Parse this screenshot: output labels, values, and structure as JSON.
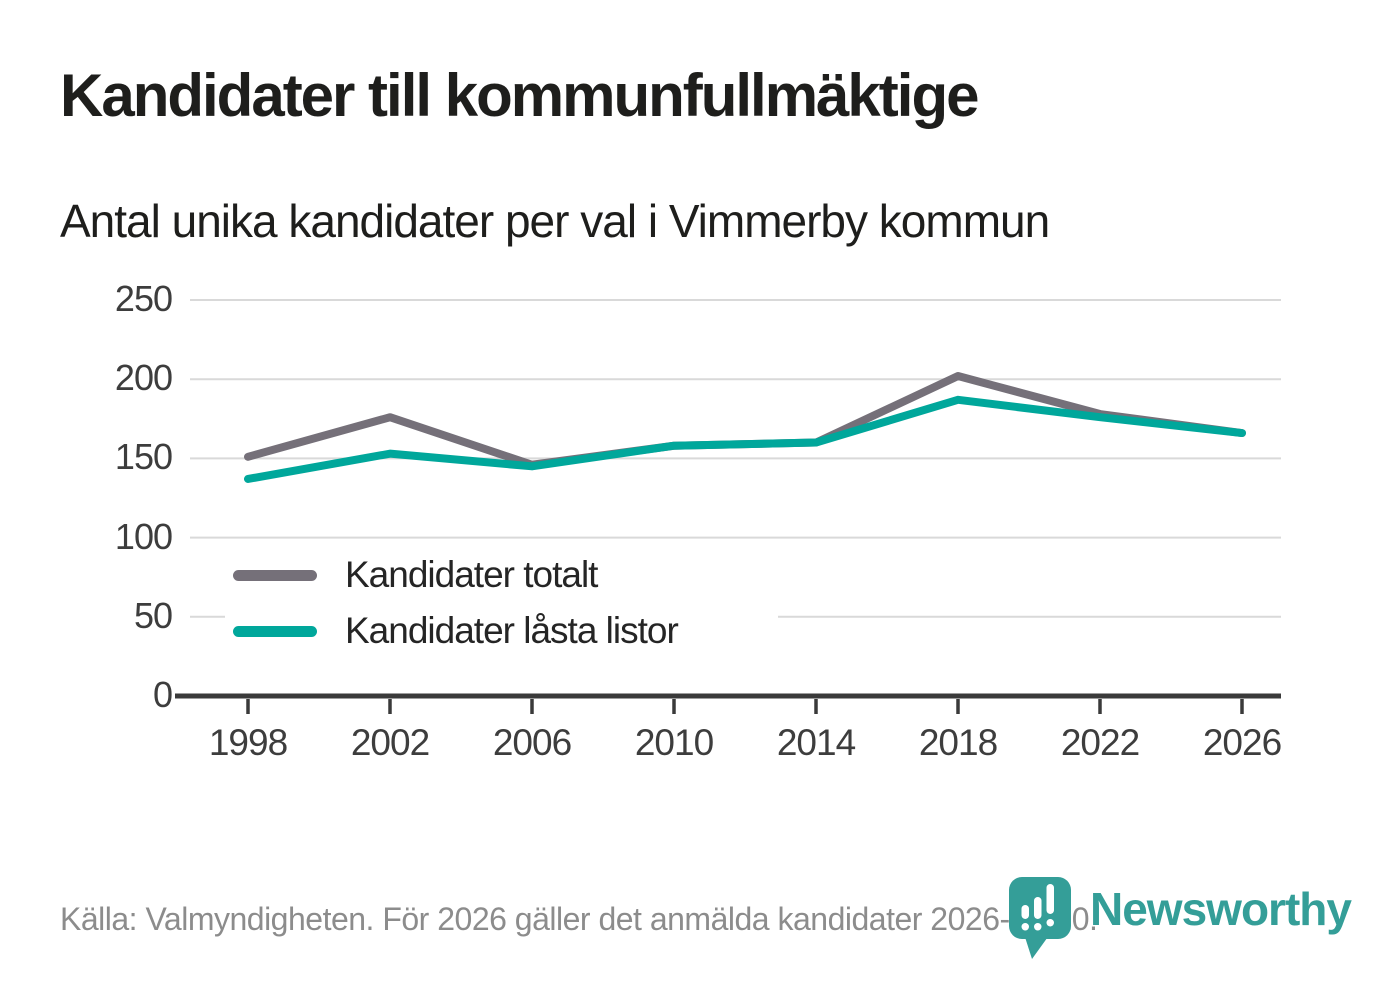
{
  "header": {
    "title": "Kandidater till kommunfullmäktige",
    "subtitle": "Antal unika kandidater per val i Vimmerby kommun"
  },
  "chart_data": {
    "type": "line",
    "title": "Kandidater till kommunfullmäktige",
    "subtitle": "Antal unika kandidater per val i Vimmerby kommun",
    "x": [
      "1998",
      "2002",
      "2006",
      "2010",
      "2014",
      "2018",
      "2022",
      "2026"
    ],
    "series": [
      {
        "name": "Kandidater totalt",
        "color": "#757079",
        "values": [
          151,
          176,
          146,
          158,
          160,
          202,
          178,
          166
        ]
      },
      {
        "name": "Kandidater låsta listor",
        "color": "#00a79b",
        "values": [
          137,
          153,
          145,
          158,
          160,
          187,
          176,
          166
        ]
      }
    ],
    "ylim": [
      0,
      250
    ],
    "yticks": [
      0,
      50,
      100,
      150,
      200,
      250
    ],
    "grid": "horizontal-only",
    "legend_position": "inside-left-middle",
    "xlabel": "",
    "ylabel": ""
  },
  "footer": {
    "source": "Källa: Valmyndigheten. För 2026 gäller det anmälda kandidater 2026-04-10."
  },
  "branding": {
    "name": "Newsworthy",
    "color": "#349e98",
    "icon": "newsworthy-pin-barchart-icon"
  },
  "colors": {
    "gridline": "#d9d9d9",
    "axis": "#3a3a3a",
    "tick_label": "#3d3d3d",
    "title_text": "#1e1e1c",
    "muted_text": "#8c8c8c"
  }
}
